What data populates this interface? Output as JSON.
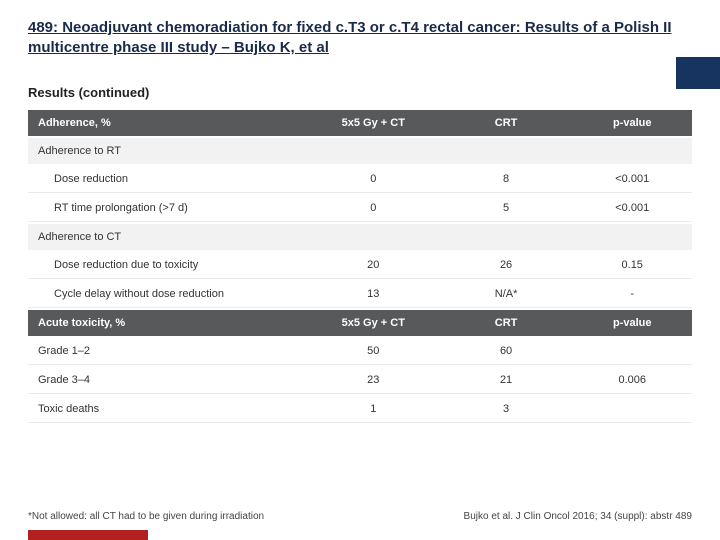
{
  "title": "489: Neoadjuvant chemoradiation for fixed c.T3 or c.T4 rectal cancer: Results of a Polish II multicentre phase III study – Bujko K, et al",
  "section_title": "Results (continued)",
  "table1": {
    "headers": [
      "Adherence, %",
      "5x5 Gy + CT",
      "CRT",
      "p-value"
    ],
    "groups": [
      {
        "label": "Adherence to RT",
        "rows": [
          {
            "label": "Dose reduction",
            "a": "0",
            "b": "8",
            "c": "<0.001"
          },
          {
            "label": "RT time prolongation (>7 d)",
            "a": "0",
            "b": "5",
            "c": "<0.001"
          }
        ]
      },
      {
        "label": "Adherence to CT",
        "rows": [
          {
            "label": "Dose reduction due to toxicity",
            "a": "20",
            "b": "26",
            "c": "0.15"
          },
          {
            "label": "Cycle delay without dose reduction",
            "a": "13",
            "b": "N/A*",
            "c": "-"
          }
        ]
      }
    ]
  },
  "table2": {
    "headers": [
      "Acute toxicity, %",
      "5x5 Gy + CT",
      "CRT",
      "p-value"
    ],
    "rows": [
      {
        "label": "Grade 1–2",
        "a": "50",
        "b": "60",
        "c": ""
      },
      {
        "label": "Grade 3–4",
        "a": "23",
        "b": "21",
        "c": "0.006"
      },
      {
        "label": "Toxic deaths",
        "a": "1",
        "b": "3",
        "c": ""
      }
    ]
  },
  "footnote": "*Not allowed: all CT had to be given during irradiation",
  "citation": "Bujko et al. J Clin Oncol 2016; 34 (suppl): abstr 489",
  "colors": {
    "header_bg": "#58595b",
    "title_color": "#1a2a4a",
    "blue_accent": "#17335f",
    "red_accent": "#b22020"
  }
}
